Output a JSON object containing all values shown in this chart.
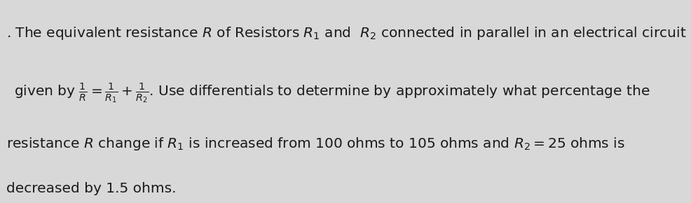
{
  "background_color": "#d8d8d8",
  "text_color": "#1a1a1a",
  "line1": ". The equivalent resistance ",
  "line1_R": "R",
  "line1_mid": " of Resistors ",
  "line1_R1": "$R_1$",
  "line1_and": " and  ",
  "line1_R2": "$R_2$",
  "line1_end": " connected in parallel in an electrical circuit is",
  "line2_start": "given by ",
  "line2_frac": "$\\frac{1}{R} = \\frac{1}{R_1} + \\frac{1}{R_2}$",
  "line2_end": ". Use differentials to determine by approximately what percentage the",
  "line3": "resistance $R$ change if $R_1$ is increased from 100 ohms to 105 ohms and $R_2 = 25$ ohms is",
  "line4": "decreased by 1.5 ohms.",
  "fontsize": 14.5,
  "fig_width": 9.86,
  "fig_height": 2.9,
  "dpi": 100
}
